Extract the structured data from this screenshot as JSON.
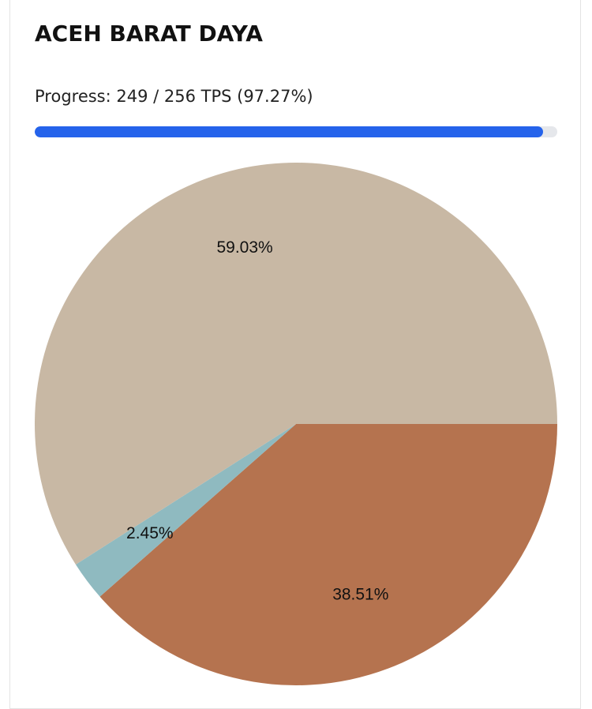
{
  "header": {
    "title": "ACEH BARAT DAYA"
  },
  "progress": {
    "text": "Progress: 249 / 256 TPS (97.27%)",
    "done": 249,
    "total": 256
  },
  "chart_data": {
    "type": "pie",
    "values": [
      38.51,
      2.45,
      59.03
    ],
    "value_labels": [
      "38.51%",
      "2.45%",
      "59.03%"
    ],
    "colors": [
      "#b5734f",
      "#8fbac0",
      "#c8b8a4"
    ],
    "start_angle": 0,
    "direction": "clockwise"
  }
}
